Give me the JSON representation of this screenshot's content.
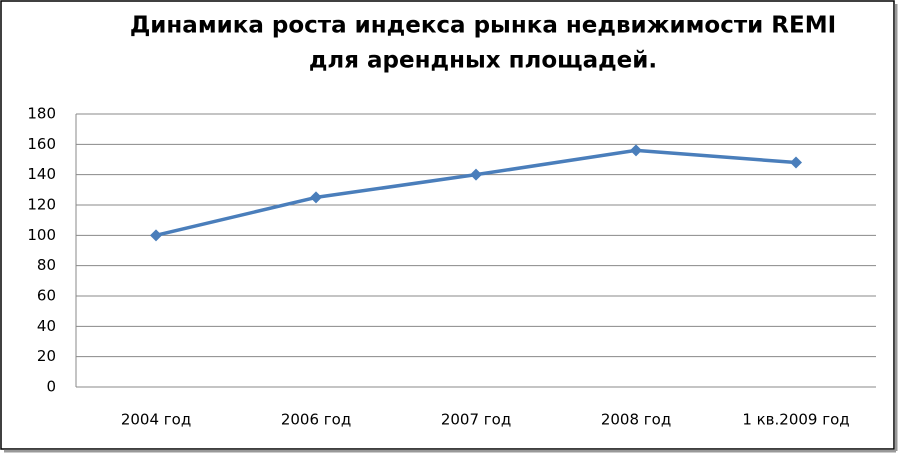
{
  "chart_data": {
    "type": "line",
    "title": [
      "Динамика роста индекса рынка недвижимости REMI",
      "для арендных площадей."
    ],
    "categories": [
      "2004 год",
      "2006 год",
      "2007 год",
      "2008 год",
      "1 кв.2009 год"
    ],
    "series": [
      {
        "name": "REMI",
        "color": "#4a7ebb",
        "values": [
          100,
          125,
          140,
          156,
          148
        ]
      }
    ],
    "ylim": [
      0,
      180
    ],
    "yticks": [
      0,
      20,
      40,
      60,
      80,
      100,
      120,
      140,
      160,
      180
    ],
    "grid": true
  }
}
